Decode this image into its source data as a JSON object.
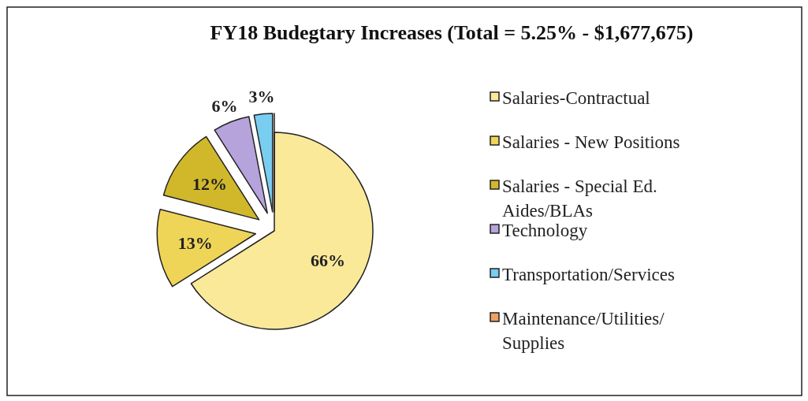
{
  "chart_data": {
    "type": "pie",
    "title": "FY18 Budegtary Increases (Total = 5.25% - $1,677,675)",
    "categories": [
      "Salaries-Contractual",
      "Salaries - New Positions",
      "Salaries - Special Ed. Aides/BLAs",
      "Technology",
      "Transportation/Services",
      "Maintenance/Utilities/ Supplies"
    ],
    "values": [
      66,
      13,
      12,
      6,
      3,
      0
    ],
    "colors": [
      "#fbe99a",
      "#efd557",
      "#d1b82a",
      "#b6a3dc",
      "#79cdf0",
      "#f0a060"
    ],
    "value_labels": [
      "66%",
      "13%",
      "12%",
      "6%",
      "3%",
      null
    ],
    "legend": "right"
  }
}
